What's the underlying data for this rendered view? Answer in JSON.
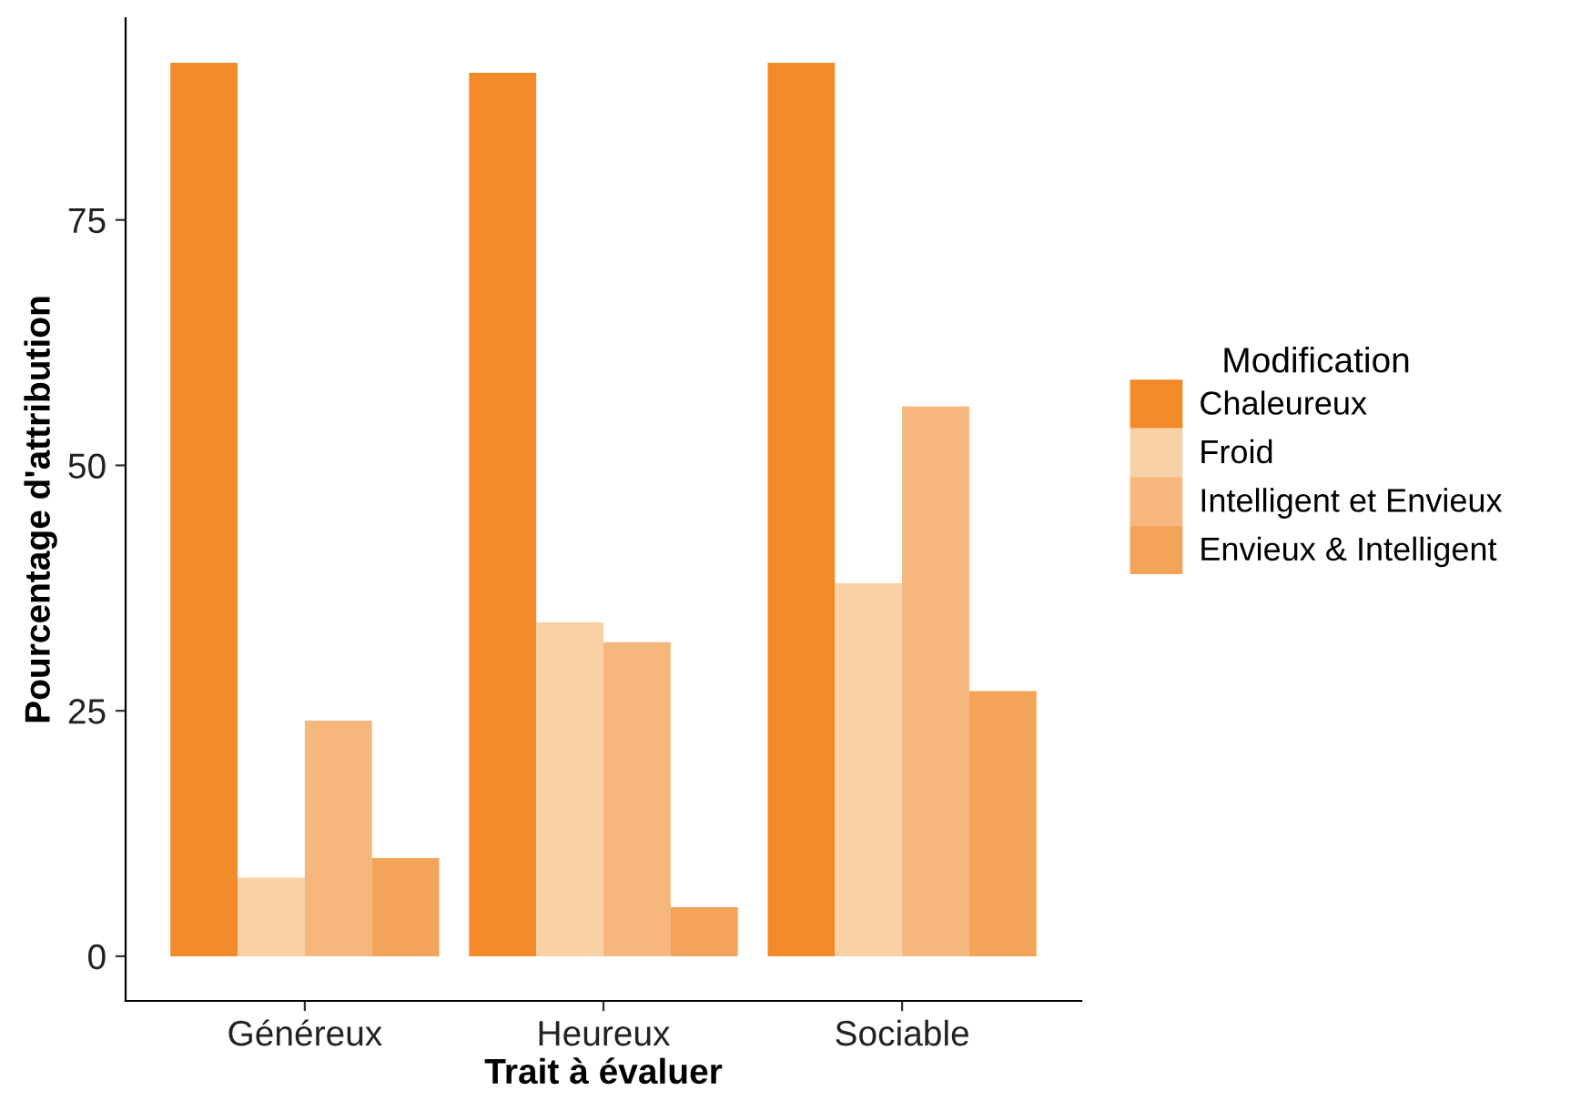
{
  "chart_data": {
    "type": "bar",
    "xlabel": "Trait à évaluer",
    "ylabel": "Pourcentage d'attribution",
    "legend_title": "Modification",
    "legend": "right",
    "categories": [
      "Généreux",
      "Heureux",
      "Sociable"
    ],
    "series": [
      {
        "name": "Chaleureux",
        "color": "#f28a2a",
        "values": [
          91,
          90,
          91
        ]
      },
      {
        "name": "Froid",
        "color": "#f9d1a6",
        "values": [
          8,
          34,
          38
        ]
      },
      {
        "name": "Intelligent et Envieux",
        "color": "#f5b77c",
        "values": [
          24,
          32,
          56
        ]
      },
      {
        "name": "Envieux & Intelligent",
        "color": "#f4a459",
        "values": [
          10,
          5,
          27
        ]
      }
    ],
    "ylim": [
      -4.55,
      95.55
    ],
    "yticks": [
      0,
      25,
      50,
      75
    ],
    "grid": false
  }
}
